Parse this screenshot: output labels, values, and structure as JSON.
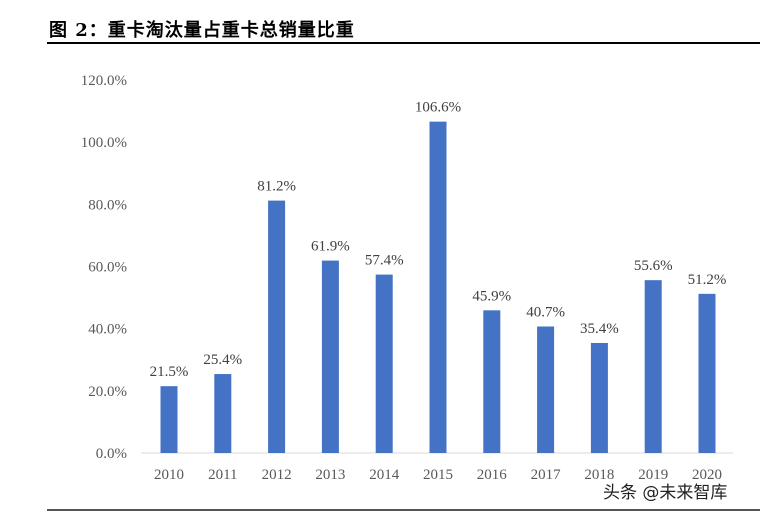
{
  "title": "图 2：重卡淘汰量占重卡总销量比重",
  "watermark": "头条 @未来智库",
  "chart_data": {
    "type": "bar",
    "categories": [
      "2010",
      "2011",
      "2012",
      "2013",
      "2014",
      "2015",
      "2016",
      "2017",
      "2018",
      "2019",
      "2020"
    ],
    "values": [
      21.5,
      25.4,
      81.2,
      61.9,
      57.4,
      106.6,
      45.9,
      40.7,
      35.4,
      55.6,
      51.2
    ],
    "data_labels": [
      "21.5%",
      "25.4%",
      "81.2%",
      "61.9%",
      "57.4%",
      "106.6%",
      "45.9%",
      "40.7%",
      "35.4%",
      "55.6%",
      "51.2%"
    ],
    "yticks": [
      "0.0%",
      "20.0%",
      "40.0%",
      "60.0%",
      "80.0%",
      "100.0%",
      "120.0%"
    ],
    "ylim": [
      0,
      120
    ],
    "grid": false,
    "bar_color": "#4472C4"
  }
}
